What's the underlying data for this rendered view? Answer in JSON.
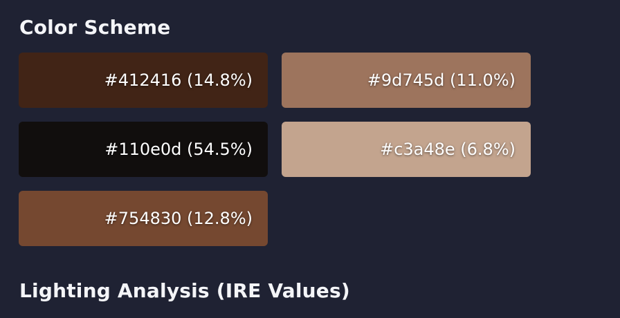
{
  "sections": {
    "color_scheme_title": "Color Scheme",
    "lighting_title": "Lighting Analysis (IRE Values)"
  },
  "swatches": [
    {
      "hex": "#412416",
      "label": "#412416 (14.8%)",
      "percent": 14.8
    },
    {
      "hex": "#9d745d",
      "label": "#9d745d (11.0%)",
      "percent": 11.0
    },
    {
      "hex": "#110e0d",
      "label": "#110e0d (54.5%)",
      "percent": 54.5
    },
    {
      "hex": "#c3a48e",
      "label": "#c3a48e (6.8%)",
      "percent": 6.8
    },
    {
      "hex": "#754830",
      "label": "#754830 (12.8%)",
      "percent": 12.8
    }
  ],
  "colors": {
    "background": "#1f2233",
    "heading_text": "#f4f5f8"
  }
}
